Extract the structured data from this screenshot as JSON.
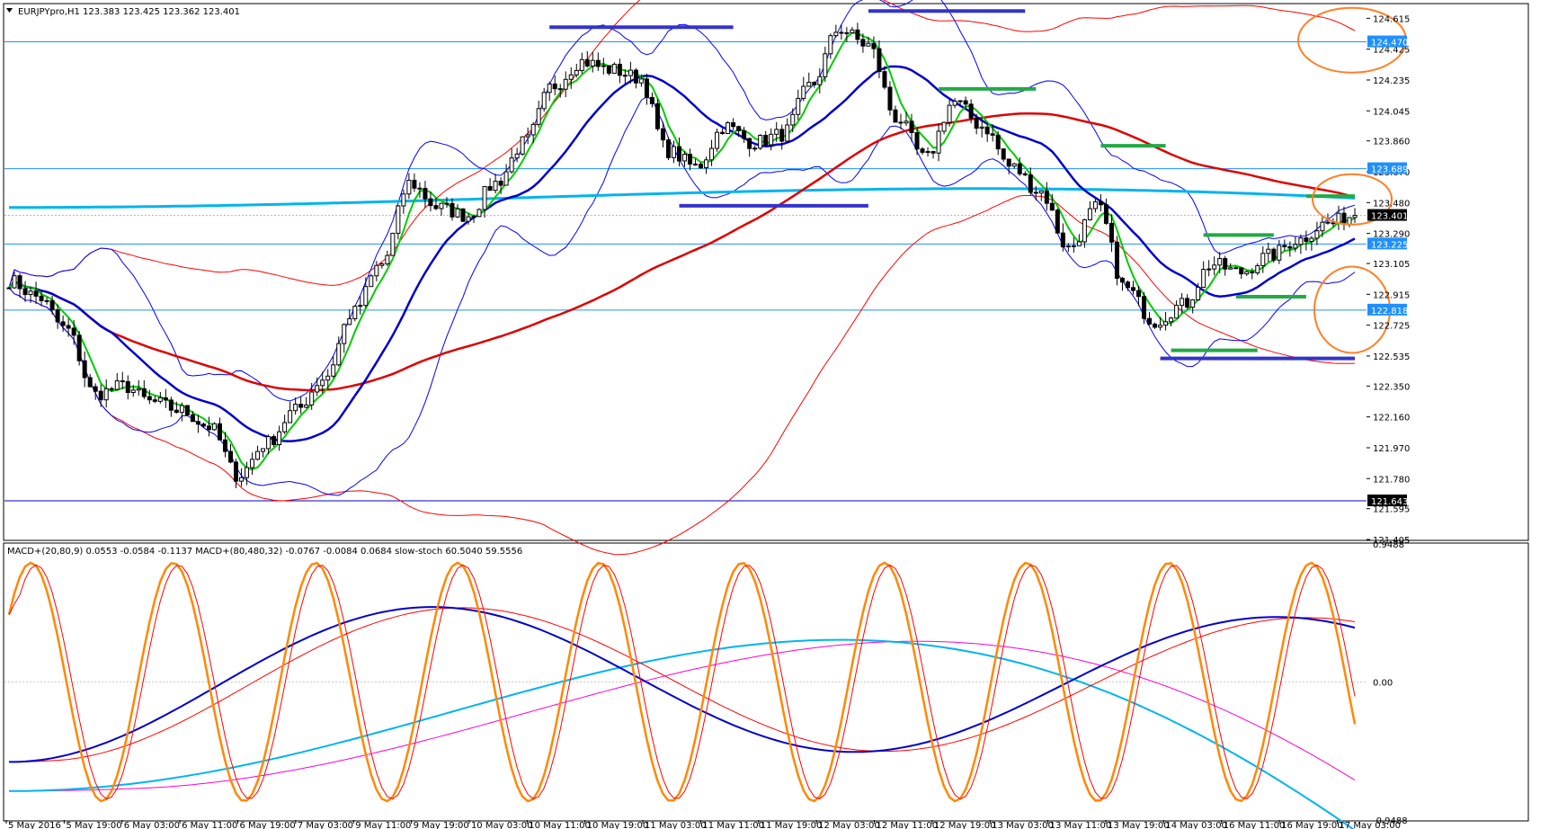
{
  "header": {
    "main": "EURJPYpro,H1  123.383 123.425 123.362 123.401",
    "sub": "MACD+(20,80,9) 0.0553 -0.0584 -0.1137  MACD+(80,480,32) -0.0767 -0.0084 0.0684  slow-stoch 60.5040 59.5556"
  },
  "colors": {
    "candle": "#000000",
    "bb_outer": "#ff0000",
    "bb_inner": "#0000ff",
    "ma_fast": "#00cc00",
    "ma_mid": "#0000cc",
    "ma_slow": "#dd0000",
    "ma_long": "#00b4ee",
    "hline": "#1e90ff",
    "hline_dark": "#0000cc",
    "marker_blue": "#3333cc",
    "marker_green": "#22aa44",
    "circle": "#ff7f27",
    "macd1": "#0000cc",
    "macd1_signal": "#ff0000",
    "macd2": "#00b4ee",
    "macd2_signal": "#ff00cc",
    "stoch_k": "#ff8800",
    "stoch_d": "#ff0000"
  },
  "chart_data": [
    {
      "type": "line",
      "subtype": "candlestick",
      "symbol": "EURJPYpro",
      "timeframe": "H1",
      "ylim": [
        121.405,
        124.7
      ],
      "y_ticks": [
        "124.615",
        "124.425",
        "124.235",
        "124.045",
        "123.860",
        "123.670",
        "123.480",
        "123.290",
        "123.105",
        "122.915",
        "122.725",
        "122.535",
        "122.350",
        "122.160",
        "121.970",
        "121.780",
        "121.595",
        "121.405"
      ],
      "x_ticks": [
        "5 May 2016",
        "5 May 19:00",
        "6 May 03:00",
        "6 May 11:00",
        "6 May 19:00",
        "7 May 03:00",
        "9 May 11:00",
        "9 May 19:00",
        "10 May 03:00",
        "10 May 11:00",
        "10 May 19:00",
        "11 May 03:00",
        "11 May 11:00",
        "11 May 19:00",
        "12 May 03:00",
        "12 May 11:00",
        "12 May 19:00",
        "13 May 03:00",
        "13 May 11:00",
        "13 May 19:00",
        "14 May 03:00",
        "16 May 11:00",
        "16 May 19:00",
        "17 May 03:00"
      ],
      "price_tags": [
        {
          "label": "124.470",
          "value": 124.47,
          "style": "blue"
        },
        {
          "label": "123.689",
          "value": 123.689,
          "style": "blue"
        },
        {
          "label": "123.401",
          "value": 123.401,
          "style": "dark"
        },
        {
          "label": "123.225",
          "value": 123.225,
          "style": "blue"
        },
        {
          "label": "122.818",
          "value": 122.818,
          "style": "blue"
        },
        {
          "label": "121.643",
          "value": 121.643,
          "style": "dark"
        }
      ],
      "key_close": [
        123.0,
        122.9,
        122.7,
        122.3,
        122.35,
        122.25,
        122.2,
        122.1,
        121.8,
        122.0,
        122.2,
        122.4,
        122.8,
        123.1,
        123.6,
        123.45,
        123.4,
        123.6,
        123.85,
        124.2,
        124.35,
        124.3,
        124.25,
        123.8,
        123.7,
        123.95,
        123.85,
        123.9,
        124.2,
        124.55,
        124.45,
        124.0,
        123.75,
        124.1,
        123.95,
        123.7,
        123.55,
        123.2,
        123.45,
        122.95,
        122.75,
        122.85,
        123.1,
        123.05,
        123.15,
        123.25,
        123.35,
        123.4
      ]
    },
    {
      "type": "line",
      "subtype": "indicators",
      "ylim": [
        -0.9488,
        0.9488
      ],
      "y_ticks": [
        "0.9488",
        "0.00",
        "-0.9488"
      ],
      "series": [
        {
          "name": "MACD+(20,80,9)"
        },
        {
          "name": "MACD+(80,480,32)"
        },
        {
          "name": "slow-stoch"
        }
      ]
    }
  ]
}
